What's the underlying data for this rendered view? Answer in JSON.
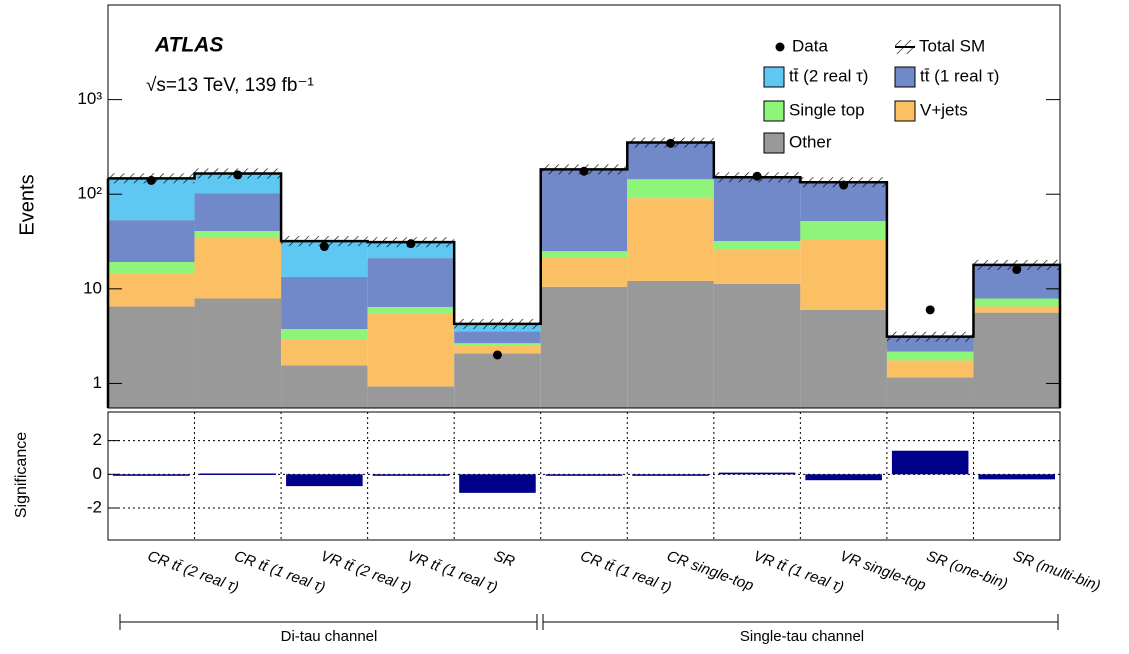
{
  "chart_data": [
    {
      "type": "bar",
      "stacked": true,
      "log_scale": true,
      "title": "ATLAS",
      "subtitle": "√s=13 TeV, 139 fb⁻¹",
      "ylabel": "Events",
      "categories": [
        "CR tt̄ (2 real τ)",
        "CR tt̄ (1 real τ)",
        "VR tt̄ (2 real τ)",
        "VR tt̄ (1 real τ)",
        "SR",
        "CR tt̄ (1 real τ)",
        "CR single-top",
        "VR tt̄ (1 real τ)",
        "VR single-top",
        "SR (one-bin)",
        "SR (multi-bin)"
      ],
      "groups": [
        "Di-tau channel",
        "Single-tau channel"
      ],
      "series": [
        {
          "name": "Other",
          "color": "#999999",
          "values": [
            6.5,
            7.9,
            1.55,
            0.93,
            2.07,
            10.5,
            12.1,
            11.3,
            6.0,
            1.16,
            5.6
          ]
        },
        {
          "name": "V+jets",
          "color": "#fcc064",
          "values": [
            7.9,
            26.5,
            1.4,
            4.5,
            0.45,
            10.7,
            78.7,
            15.1,
            27.6,
            0.59,
            0.9
          ]
        },
        {
          "name": "Single top",
          "color": "#8ef57a",
          "values": [
            4.8,
            6.4,
            0.8,
            1.0,
            0.14,
            3.8,
            53,
            5.6,
            18.4,
            0.42,
            1.4
          ]
        },
        {
          "name": "tt̄ (1 real τ)",
          "color": "#7189c8",
          "values": [
            34,
            61,
            9.6,
            14.7,
            0.9,
            158,
            208,
            119,
            82,
            0.95,
            10
          ]
        },
        {
          "name": "tt̄ (2 real τ)",
          "color": "#5ec8f2",
          "values": [
            94,
            64,
            18.6,
            10,
            0.7,
            0,
            0,
            0,
            0,
            0,
            0
          ]
        }
      ],
      "data": {
        "name": "Data",
        "values": [
          140,
          160,
          28,
          30,
          2,
          175,
          345,
          155,
          125,
          6,
          16
        ]
      },
      "total_sm": {
        "name": "Total SM"
      },
      "ylim": [
        0.55,
        10000
      ],
      "yticks": [
        1,
        10,
        {
          "value": 100,
          "label": "10²"
        },
        {
          "value": 1000,
          "label": "10³"
        }
      ]
    },
    {
      "type": "bar",
      "ylabel": "Significance",
      "color": "#00008b",
      "values": [
        -0.05,
        0.05,
        -0.7,
        -0.05,
        -1.1,
        -0.05,
        -0.05,
        0.1,
        -0.35,
        1.4,
        -0.3
      ],
      "ylim": [
        -3.9,
        3.7
      ],
      "yticks": [
        2,
        0,
        -2
      ],
      "grid": true
    }
  ]
}
